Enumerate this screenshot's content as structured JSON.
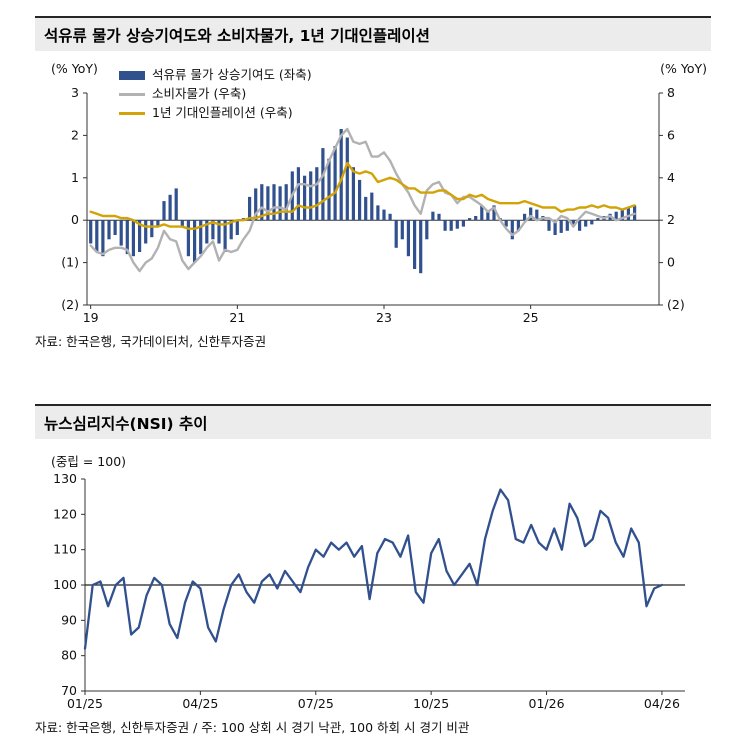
{
  "chart_data": [
    {
      "type": "bar+line-combo",
      "title": "석유류 물가 상승기여도와 소비자물가, 1년 기대인플레이션",
      "source": "자료: 한국은행, 국가데이터처, 신한투자증권",
      "x_start": 2019.0,
      "x_step": 0.083333,
      "x_min": 2018.95,
      "x_max": 2026.75,
      "x_ticks": {
        "values": [
          2019,
          2021,
          2023,
          2025
        ],
        "labels": [
          "19",
          "21",
          "23",
          "25"
        ]
      },
      "left_axis": {
        "label": "(% YoY)",
        "min": -2,
        "max": 3,
        "tick_values": [
          3,
          2,
          1,
          0,
          -1,
          -2
        ],
        "tick_labels": [
          "3",
          "2",
          "1",
          "0",
          "(1)",
          "(2)"
        ]
      },
      "right_axis": {
        "label": "(% YoY)",
        "min": -2,
        "max": 8,
        "tick_values": [
          8,
          6,
          4,
          2,
          0,
          -2
        ],
        "tick_labels": [
          "8",
          "6",
          "4",
          "2",
          "0",
          "(2)"
        ]
      },
      "series": [
        {
          "name": "석유류 물가 상승기여도 (좌축)",
          "type": "bar",
          "axis": "left",
          "color": "#31508e",
          "values": [
            -0.55,
            -0.75,
            -0.85,
            -0.45,
            -0.35,
            -0.6,
            -0.8,
            -0.85,
            -0.75,
            -0.55,
            -0.4,
            -0.15,
            0.45,
            0.6,
            0.75,
            -0.15,
            -0.85,
            -1.0,
            -0.8,
            -0.55,
            -0.45,
            -0.55,
            -0.75,
            -0.45,
            -0.35,
            0.05,
            0.55,
            0.75,
            0.85,
            0.8,
            0.85,
            0.8,
            0.85,
            1.15,
            1.25,
            1.05,
            1.15,
            1.25,
            1.7,
            1.45,
            1.75,
            2.15,
            1.95,
            1.25,
            0.95,
            0.55,
            0.65,
            0.35,
            0.25,
            0.15,
            -0.65,
            -0.45,
            -0.85,
            -1.15,
            -1.25,
            -0.45,
            0.2,
            0.15,
            -0.25,
            -0.25,
            -0.2,
            -0.15,
            0.05,
            0.1,
            0.35,
            0.2,
            0.35,
            0.05,
            -0.15,
            -0.45,
            -0.25,
            0.15,
            0.3,
            0.25,
            0.1,
            -0.25,
            -0.35,
            -0.3,
            -0.25,
            -0.15,
            -0.25,
            -0.15,
            -0.1,
            0.05,
            0.1,
            0.15,
            0.2,
            0.25,
            0.3,
            0.35
          ]
        },
        {
          "name": "소비자물가 (우축)",
          "type": "line",
          "axis": "right",
          "color": "#b2b2b2",
          "values": [
            0.8,
            0.5,
            0.4,
            0.6,
            0.7,
            0.7,
            0.6,
            0.0,
            -0.4,
            0.0,
            0.2,
            0.7,
            1.5,
            1.1,
            1.0,
            0.1,
            -0.3,
            0.0,
            0.3,
            0.7,
            1.0,
            0.1,
            0.6,
            0.5,
            0.6,
            1.1,
            1.5,
            2.3,
            2.6,
            2.4,
            2.6,
            2.6,
            2.5,
            3.2,
            3.7,
            3.7,
            3.6,
            3.7,
            4.1,
            4.8,
            5.4,
            6.0,
            6.3,
            5.7,
            5.6,
            5.7,
            5.0,
            5.0,
            5.2,
            4.8,
            4.2,
            3.7,
            3.3,
            2.7,
            2.3,
            3.4,
            3.7,
            3.8,
            3.3,
            3.2,
            2.8,
            3.1,
            3.1,
            2.9,
            2.7,
            2.4,
            2.6,
            2.0,
            1.6,
            1.3,
            1.5,
            1.9,
            2.2,
            2.0,
            2.1,
            2.1,
            1.9,
            2.2,
            2.1,
            1.7,
            2.1,
            2.4,
            2.3,
            2.2,
            2.1,
            2.2,
            2.0,
            2.1,
            2.2,
            2.3
          ]
        },
        {
          "name": "1년 기대인플레이션 (우축)",
          "type": "line",
          "axis": "right",
          "color": "#d2a306",
          "values": [
            2.4,
            2.3,
            2.2,
            2.2,
            2.2,
            2.1,
            2.1,
            2.0,
            1.8,
            1.7,
            1.7,
            1.7,
            1.8,
            1.7,
            1.7,
            1.7,
            1.6,
            1.6,
            1.7,
            1.8,
            1.9,
            1.8,
            1.8,
            1.9,
            2.0,
            2.0,
            2.1,
            2.1,
            2.2,
            2.3,
            2.3,
            2.4,
            2.4,
            2.4,
            2.7,
            2.6,
            2.6,
            2.7,
            2.9,
            3.1,
            3.3,
            3.9,
            4.7,
            4.3,
            4.2,
            4.3,
            4.2,
            3.8,
            3.9,
            4.0,
            3.9,
            3.7,
            3.5,
            3.5,
            3.3,
            3.3,
            3.3,
            3.4,
            3.4,
            3.2,
            3.0,
            3.0,
            3.2,
            3.1,
            3.2,
            3.0,
            2.9,
            2.8,
            2.8,
            2.8,
            2.8,
            2.9,
            2.8,
            2.7,
            2.6,
            2.6,
            2.6,
            2.4,
            2.5,
            2.5,
            2.6,
            2.6,
            2.7,
            2.6,
            2.7,
            2.6,
            2.6,
            2.5,
            2.6,
            2.7
          ]
        }
      ]
    },
    {
      "type": "line",
      "title": "뉴스심리지수(NSI) 추이",
      "source": "자료: 한국은행, 신한투자증권 / 주: 100 상회 시 경기 낙관, 100 하회 시 경기 비관",
      "x_start": 0,
      "x_step": 0.2,
      "x_min": 0,
      "x_max": 15.6,
      "x_ticks": {
        "values": [
          0,
          3,
          6,
          9,
          12,
          15
        ],
        "labels": [
          "01/25",
          "04/25",
          "07/25",
          "10/25",
          "01/26",
          "04/26"
        ]
      },
      "y_axis": {
        "label": "(중립 = 100)",
        "min": 70,
        "max": 130,
        "tick_values": [
          130,
          120,
          110,
          100,
          90,
          80,
          70
        ],
        "tick_labels": [
          "130",
          "120",
          "110",
          "100",
          "90",
          "80",
          "70"
        ]
      },
      "reference_line": 100,
      "series": [
        {
          "name": "뉴스심리지수(NSI)",
          "type": "line",
          "color": "#31508e",
          "values": [
            82,
            100,
            101,
            94,
            100,
            102,
            86,
            88,
            97,
            102,
            100,
            89,
            85,
            95,
            101,
            99,
            88,
            84,
            93,
            100,
            103,
            98,
            95,
            101,
            103,
            99,
            104,
            101,
            98,
            105,
            110,
            108,
            112,
            110,
            112,
            108,
            111,
            96,
            109,
            113,
            112,
            108,
            114,
            98,
            95,
            109,
            113,
            104,
            100,
            103,
            106,
            100,
            113,
            121,
            127,
            124,
            113,
            112,
            117,
            112,
            110,
            116,
            110,
            123,
            119,
            111,
            113,
            121,
            119,
            112,
            108,
            116,
            112,
            94,
            99,
            100
          ]
        }
      ]
    }
  ]
}
